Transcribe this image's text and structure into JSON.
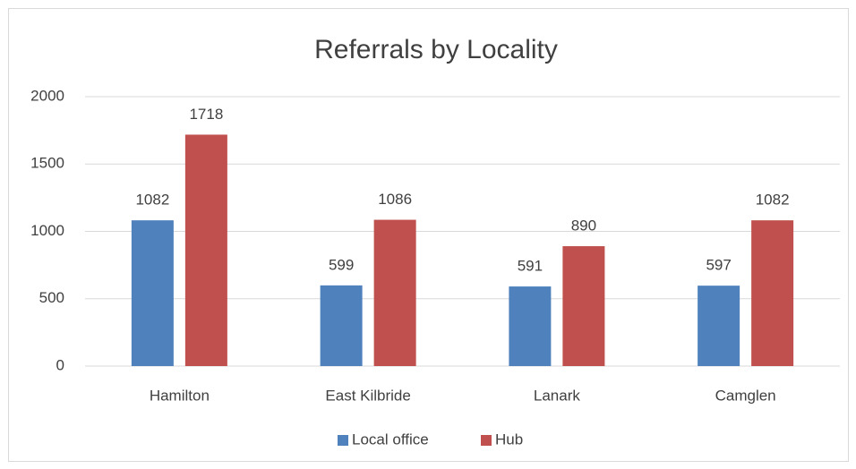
{
  "chart_data": {
    "type": "bar",
    "title": "Referrals by Locality",
    "categories": [
      "Hamilton",
      "East Kilbride",
      "Lanark",
      "Camglen"
    ],
    "series": [
      {
        "name": "Local office",
        "color": "#4f81bd",
        "values": [
          1082,
          599,
          591,
          597
        ]
      },
      {
        "name": "Hub",
        "color": "#c0504d",
        "values": [
          1718,
          1086,
          890,
          1082
        ]
      }
    ],
    "ylim": [
      0,
      2000
    ],
    "yticks": [
      0,
      500,
      1000,
      1500,
      2000
    ],
    "grid": true,
    "legend": "bottom"
  }
}
